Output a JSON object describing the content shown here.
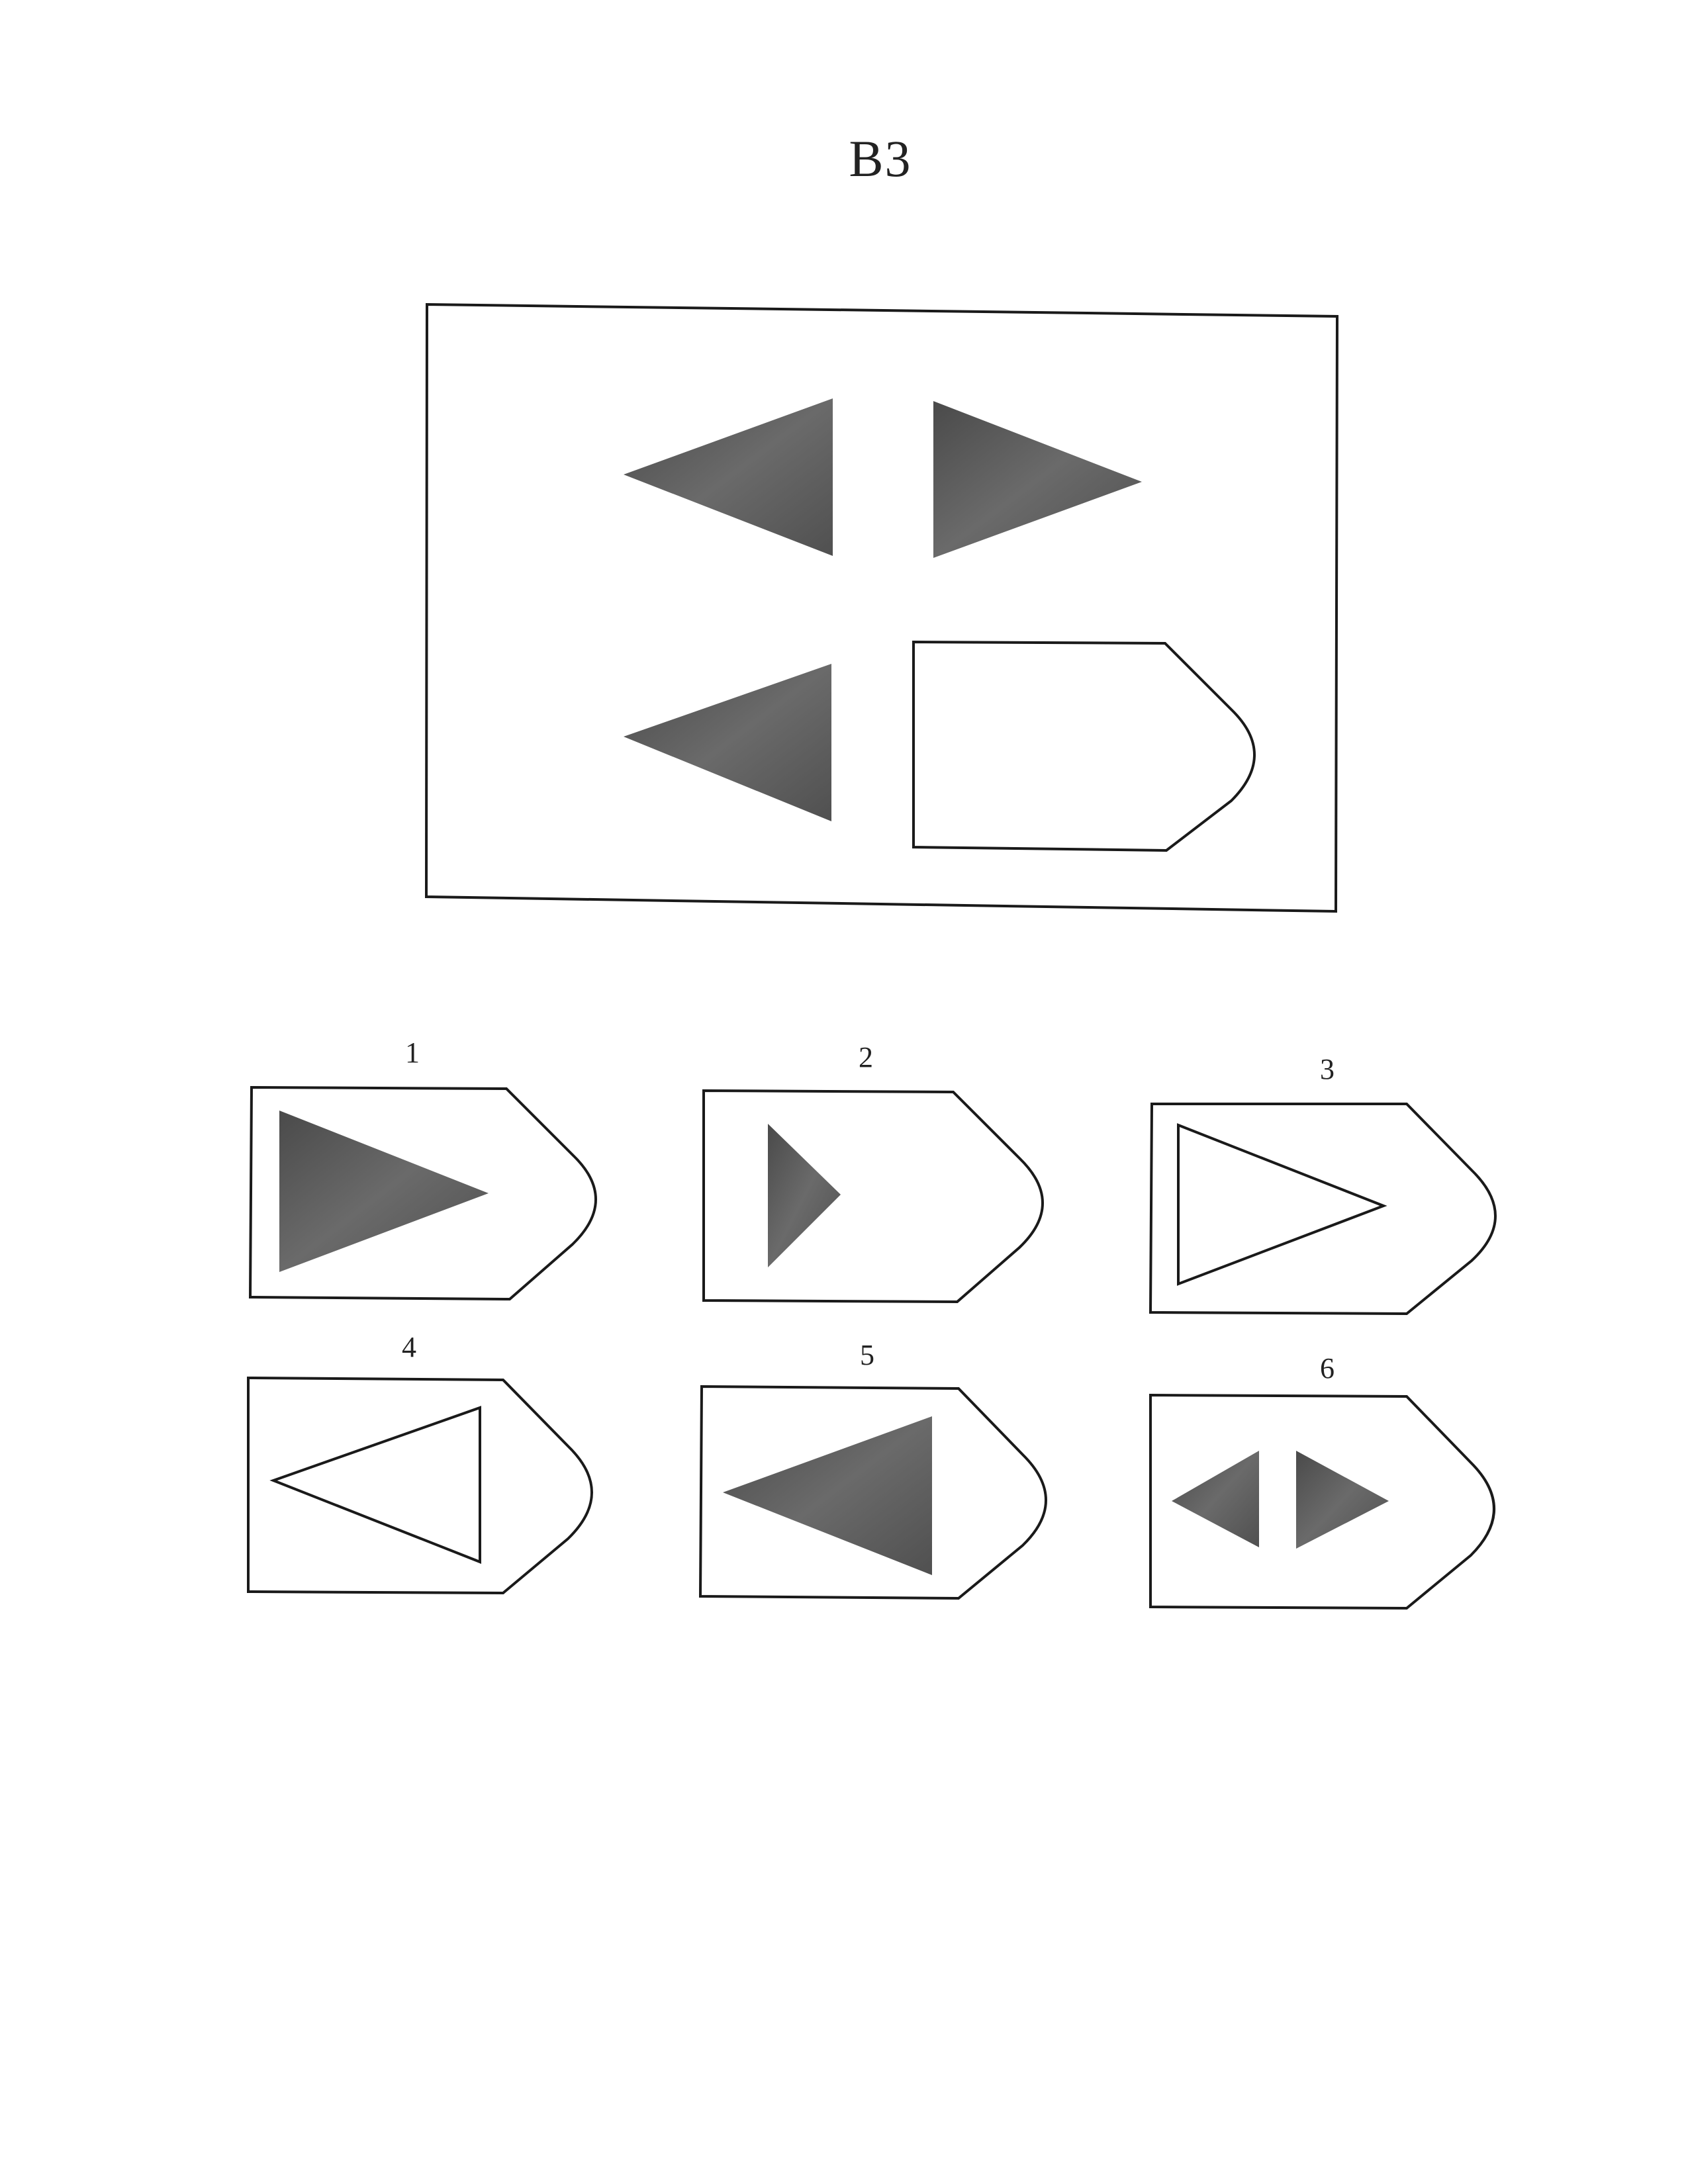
{
  "title": "B3",
  "options": [
    {
      "number": "1"
    },
    {
      "number": "2"
    },
    {
      "number": "3"
    },
    {
      "number": "4"
    },
    {
      "number": "5"
    },
    {
      "number": "6"
    }
  ],
  "colors": {
    "shape_fill": "#555555",
    "outline": "#1a1a1a",
    "background": "#ffffff"
  }
}
